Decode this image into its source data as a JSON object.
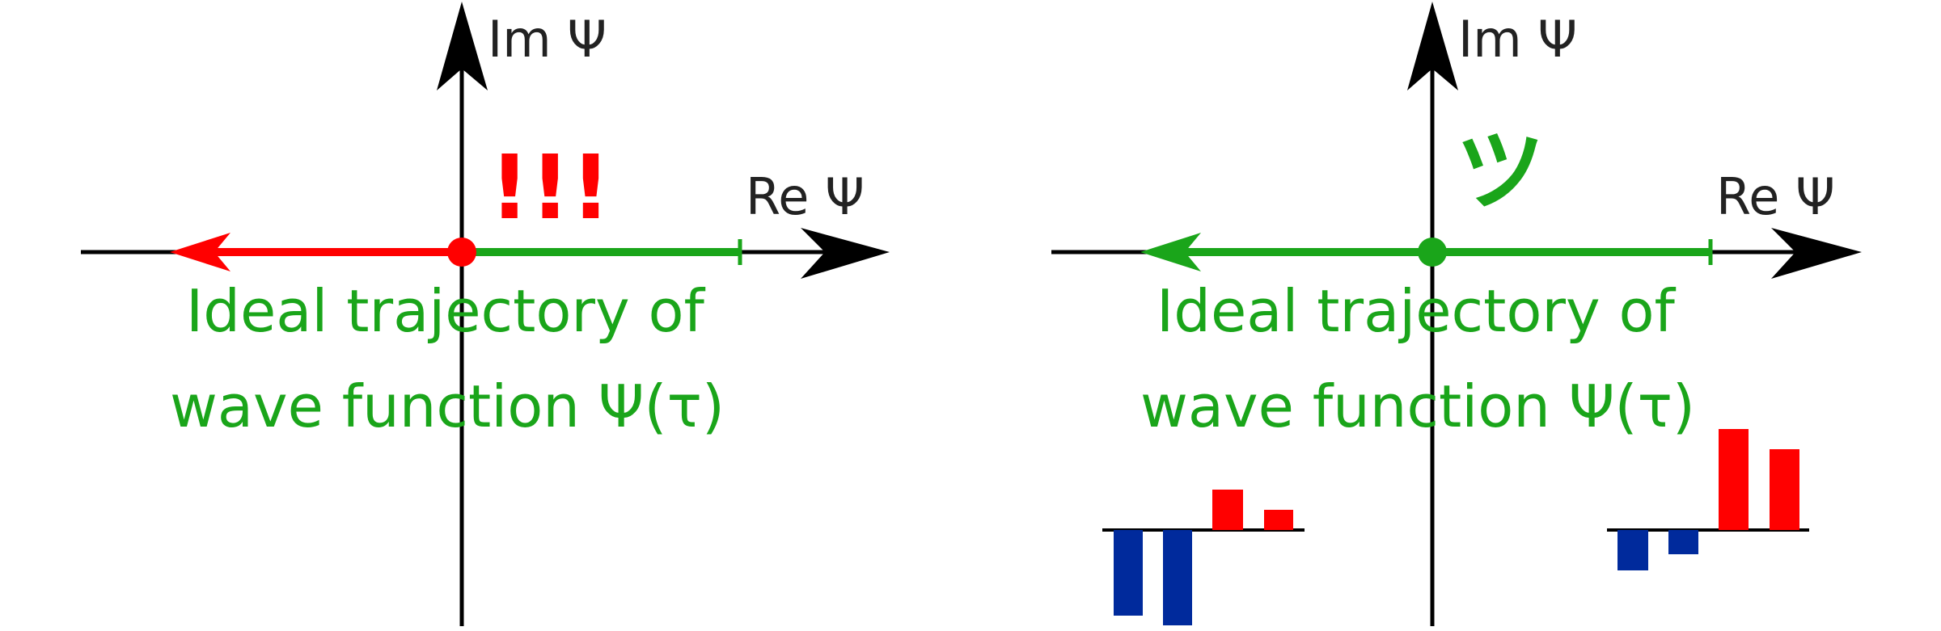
{
  "colors": {
    "axis": "#000000",
    "green": "#1aa51a",
    "red": "#ff0000",
    "blue": "#002a9c"
  },
  "left_panel": {
    "im_label": "Im Ψ",
    "re_label": "Re Ψ",
    "mark": "!!!",
    "caption_line1": "Ideal trajectory of",
    "caption_line2": "wave function Ψ(τ)"
  },
  "right_panel": {
    "im_label": "Im Ψ",
    "re_label": "Re Ψ",
    "mark": "ツ",
    "caption_line1": "Ideal trajectory of",
    "caption_line2": "wave function Ψ(τ)",
    "bar_chart_left": {
      "values": [
        -2.1,
        -2.4,
        1.0,
        0.5
      ],
      "colors": [
        "blue",
        "blue",
        "red",
        "red"
      ]
    },
    "bar_chart_right": {
      "values": [
        -1.0,
        -0.6,
        2.5,
        2.0
      ],
      "colors": [
        "blue",
        "blue",
        "red",
        "red"
      ]
    }
  }
}
